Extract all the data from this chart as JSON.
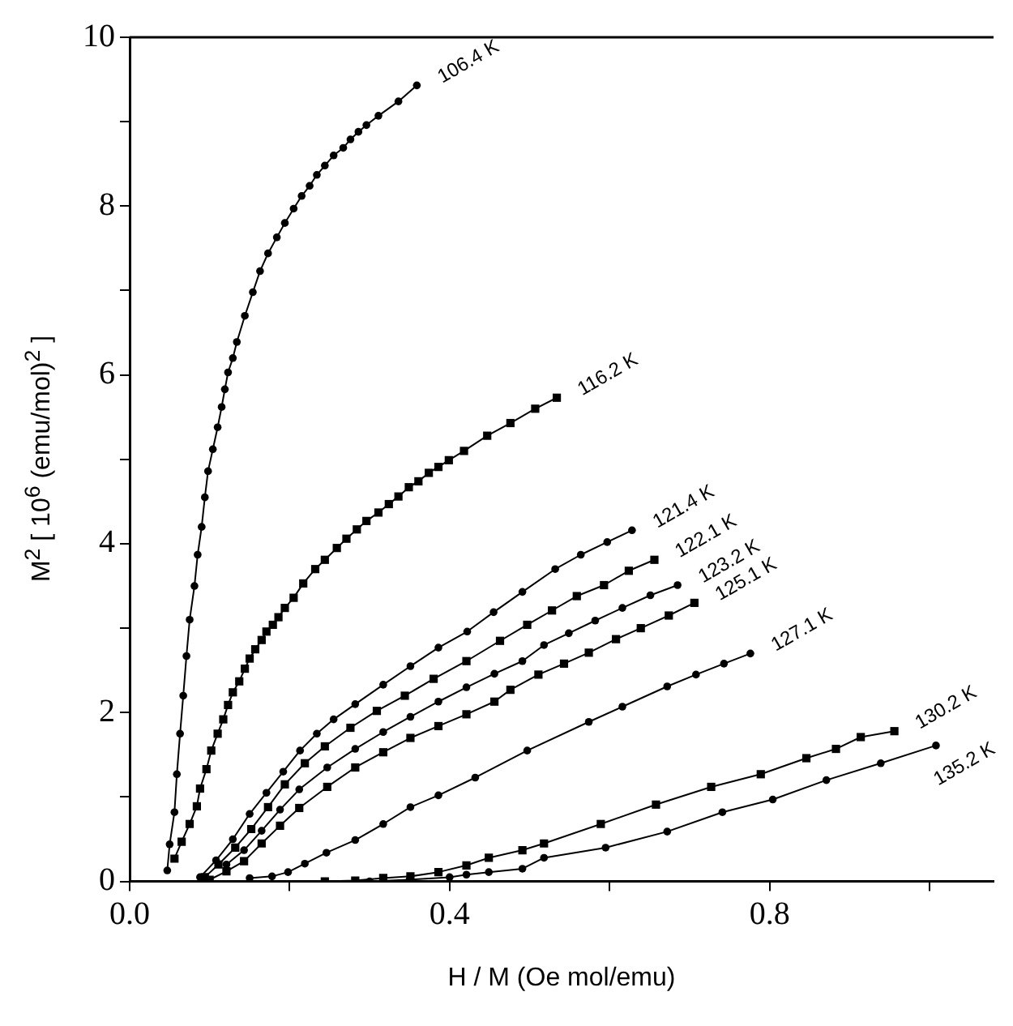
{
  "chart_data": {
    "type": "line",
    "xlabel": "H / M (Oe mol/emu)",
    "ylabel": "M$^{2}$ [ 10$^{6}$ (emu/mol)$^{2}$ ]",
    "xlim": [
      0,
      1.08
    ],
    "xticks": [
      {
        "value": 0,
        "label": "0.0"
      },
      {
        "value": 0.2,
        "label": null
      },
      {
        "value": 0.4,
        "label": "0.4"
      },
      {
        "value": 0.6,
        "label": null
      },
      {
        "value": 0.8,
        "label": "0.8"
      },
      {
        "value": 1.0,
        "label": null
      }
    ],
    "ylim": [
      0,
      10
    ],
    "yticks": [
      0,
      {
        "value": 1,
        "label": null
      },
      2,
      {
        "value": 3,
        "label": null
      },
      4,
      {
        "value": 5,
        "label": null
      },
      6,
      {
        "value": 7,
        "label": null
      },
      8,
      {
        "value": 9,
        "label": null
      },
      10
    ],
    "grid": false,
    "legend": false,
    "line_style": "solid",
    "series": [
      {
        "name": "106.4 K",
        "color": "#000000",
        "marker": "circle",
        "x": [
          0.047,
          0.05,
          0.056,
          0.059,
          0.063,
          0.067,
          0.071,
          0.075,
          0.081,
          0.085,
          0.09,
          0.094,
          0.098,
          0.104,
          0.11,
          0.115,
          0.119,
          0.123,
          0.129,
          0.134,
          0.144,
          0.154,
          0.163,
          0.173,
          0.184,
          0.194,
          0.205,
          0.215,
          0.225,
          0.234,
          0.244,
          0.255,
          0.267,
          0.276,
          0.286,
          0.296,
          0.311,
          0.336,
          0.359
        ],
        "values": [
          0.13,
          0.44,
          0.82,
          1.27,
          1.75,
          2.2,
          2.67,
          3.1,
          3.5,
          3.87,
          4.2,
          4.55,
          4.86,
          5.12,
          5.38,
          5.62,
          5.83,
          6.03,
          6.2,
          6.39,
          6.7,
          6.98,
          7.23,
          7.44,
          7.63,
          7.8,
          7.97,
          8.12,
          8.24,
          8.37,
          8.48,
          8.6,
          8.69,
          8.79,
          8.88,
          8.96,
          9.07,
          9.24,
          9.43
        ]
      },
      {
        "name": "116.2 K",
        "color": "#000000",
        "marker": "square",
        "x": [
          0.056,
          0.065,
          0.075,
          0.084,
          0.088,
          0.096,
          0.102,
          0.11,
          0.117,
          0.123,
          0.129,
          0.137,
          0.144,
          0.15,
          0.157,
          0.165,
          0.171,
          0.179,
          0.186,
          0.194,
          0.205,
          0.217,
          0.232,
          0.244,
          0.259,
          0.271,
          0.284,
          0.296,
          0.311,
          0.324,
          0.336,
          0.349,
          0.361,
          0.374,
          0.386,
          0.399,
          0.418,
          0.447,
          0.476,
          0.507,
          0.534
        ],
        "values": [
          0.27,
          0.47,
          0.68,
          0.89,
          1.1,
          1.33,
          1.55,
          1.75,
          1.92,
          2.09,
          2.24,
          2.37,
          2.52,
          2.64,
          2.75,
          2.86,
          2.96,
          3.04,
          3.13,
          3.24,
          3.36,
          3.53,
          3.7,
          3.81,
          3.95,
          4.06,
          4.17,
          4.27,
          4.37,
          4.47,
          4.56,
          4.67,
          4.74,
          4.84,
          4.91,
          4.99,
          5.1,
          5.28,
          5.43,
          5.6,
          5.73
        ]
      },
      {
        "name": "121.4 K",
        "color": "#000000",
        "marker": "circle",
        "x": [
          0.088,
          0.108,
          0.129,
          0.15,
          0.171,
          0.192,
          0.213,
          0.234,
          0.255,
          0.282,
          0.317,
          0.351,
          0.386,
          0.422,
          0.455,
          0.491,
          0.532,
          0.564,
          0.597,
          0.628
        ],
        "values": [
          0.05,
          0.25,
          0.5,
          0.8,
          1.05,
          1.3,
          1.55,
          1.75,
          1.92,
          2.1,
          2.33,
          2.55,
          2.77,
          2.96,
          3.19,
          3.43,
          3.7,
          3.87,
          4.02,
          4.16
        ]
      },
      {
        "name": "122.1 K",
        "color": "#000000",
        "marker": "square",
        "x": [
          0.094,
          0.111,
          0.132,
          0.152,
          0.173,
          0.194,
          0.219,
          0.244,
          0.276,
          0.309,
          0.344,
          0.38,
          0.421,
          0.463,
          0.497,
          0.528,
          0.559,
          0.593,
          0.624,
          0.656
        ],
        "values": [
          0.05,
          0.2,
          0.4,
          0.62,
          0.88,
          1.15,
          1.4,
          1.6,
          1.82,
          2.02,
          2.2,
          2.4,
          2.61,
          2.85,
          3.04,
          3.21,
          3.38,
          3.51,
          3.68,
          3.81
        ]
      },
      {
        "name": "123.2 K",
        "color": "#000000",
        "marker": "circle",
        "x": [
          0.121,
          0.143,
          0.165,
          0.188,
          0.212,
          0.247,
          0.282,
          0.317,
          0.351,
          0.386,
          0.421,
          0.456,
          0.491,
          0.518,
          0.549,
          0.582,
          0.616,
          0.651,
          0.685
        ],
        "values": [
          0.2,
          0.37,
          0.6,
          0.85,
          1.09,
          1.35,
          1.57,
          1.77,
          1.95,
          2.13,
          2.3,
          2.46,
          2.61,
          2.8,
          2.94,
          3.09,
          3.24,
          3.39,
          3.51
        ]
      },
      {
        "name": "125.1 K",
        "color": "#000000",
        "marker": "square",
        "x": [
          0.1,
          0.121,
          0.143,
          0.165,
          0.188,
          0.212,
          0.247,
          0.282,
          0.317,
          0.351,
          0.386,
          0.421,
          0.456,
          0.476,
          0.511,
          0.543,
          0.574,
          0.608,
          0.639,
          0.674,
          0.706
        ],
        "values": [
          0.02,
          0.12,
          0.24,
          0.45,
          0.66,
          0.87,
          1.12,
          1.35,
          1.53,
          1.7,
          1.84,
          1.98,
          2.13,
          2.27,
          2.45,
          2.58,
          2.71,
          2.87,
          3.0,
          3.15,
          3.3
        ]
      },
      {
        "name": "127.1 K",
        "color": "#000000",
        "marker": "circle",
        "x": [
          0.15,
          0.178,
          0.198,
          0.219,
          0.246,
          0.282,
          0.317,
          0.351,
          0.386,
          0.432,
          0.497,
          0.574,
          0.616,
          0.672,
          0.708,
          0.743,
          0.776
        ],
        "values": [
          0.04,
          0.06,
          0.11,
          0.21,
          0.34,
          0.49,
          0.68,
          0.88,
          1.02,
          1.23,
          1.55,
          1.89,
          2.07,
          2.31,
          2.45,
          2.58,
          2.7
        ]
      },
      {
        "name": "130.2 K",
        "color": "#000000",
        "marker": "square",
        "x": [
          0.244,
          0.282,
          0.317,
          0.351,
          0.386,
          0.421,
          0.449,
          0.491,
          0.518,
          0.589,
          0.658,
          0.727,
          0.789,
          0.846,
          0.883,
          0.914,
          0.956
        ],
        "values": [
          0.0,
          0.01,
          0.04,
          0.06,
          0.11,
          0.19,
          0.28,
          0.37,
          0.45,
          0.68,
          0.91,
          1.12,
          1.27,
          1.46,
          1.57,
          1.71,
          1.78
        ]
      },
      {
        "name": "135.2 K",
        "color": "#000000",
        "marker": "circle",
        "x": [
          0.3,
          0.35,
          0.4,
          0.421,
          0.449,
          0.491,
          0.518,
          0.595,
          0.672,
          0.741,
          0.804,
          0.871,
          0.939,
          1.008
        ],
        "values": [
          0.0,
          0.02,
          0.05,
          0.08,
          0.11,
          0.15,
          0.28,
          0.4,
          0.59,
          0.82,
          0.97,
          1.2,
          1.4,
          1.61
        ]
      }
    ]
  }
}
